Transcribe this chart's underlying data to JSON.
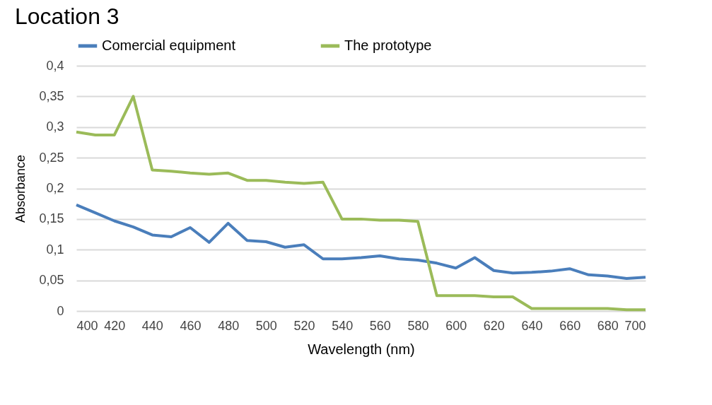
{
  "chart_data": {
    "type": "line",
    "title": "Location 3",
    "xlabel": "Wavelength (nm)",
    "ylabel": "Absorbance",
    "x": [
      400,
      410,
      420,
      430,
      440,
      450,
      460,
      470,
      480,
      490,
      500,
      510,
      520,
      530,
      540,
      550,
      560,
      570,
      580,
      590,
      600,
      610,
      620,
      630,
      640,
      650,
      660,
      670,
      680,
      690,
      700
    ],
    "series": [
      {
        "name": "Comercial equipment",
        "color": "#4a7ebb",
        "values": [
          0.173,
          0.16,
          0.147,
          0.137,
          0.124,
          0.121,
          0.136,
          0.112,
          0.143,
          0.115,
          0.113,
          0.104,
          0.108,
          0.085,
          0.085,
          0.087,
          0.09,
          0.085,
          0.083,
          0.078,
          0.07,
          0.087,
          0.066,
          0.062,
          0.063,
          0.065,
          0.069,
          0.059,
          0.057,
          0.053,
          0.055
        ]
      },
      {
        "name": "The prototype",
        "color": "#9bbb59",
        "values": [
          0.292,
          0.287,
          0.287,
          0.35,
          0.23,
          0.228,
          0.225,
          0.223,
          0.225,
          0.213,
          0.213,
          0.21,
          0.208,
          0.21,
          0.15,
          0.15,
          0.148,
          0.148,
          0.146,
          0.025,
          0.025,
          0.025,
          0.023,
          0.023,
          0.004,
          0.004,
          0.004,
          0.004,
          0.004,
          0.002,
          0.002
        ]
      }
    ],
    "xlim": [
      400,
      700
    ],
    "xticks": [
      400,
      420,
      440,
      460,
      480,
      500,
      520,
      540,
      560,
      580,
      600,
      620,
      640,
      660,
      680,
      700
    ],
    "ylim": [
      0,
      0.4
    ],
    "yticks": [
      0,
      {
        "value": 0.05,
        "label": "0,05"
      },
      {
        "value": 0.1,
        "label": "0,1"
      },
      {
        "value": 0.15,
        "label": "0,15"
      },
      {
        "value": 0.2,
        "label": "0,2"
      },
      {
        "value": 0.25,
        "label": "0,25"
      },
      {
        "value": 0.3,
        "label": "0,3"
      },
      {
        "value": 0.35,
        "label": "0,35"
      },
      {
        "value": 0.4,
        "label": "0,4"
      }
    ],
    "grid": "y",
    "legend": "top",
    "marker": "none",
    "line_style": "solid"
  }
}
